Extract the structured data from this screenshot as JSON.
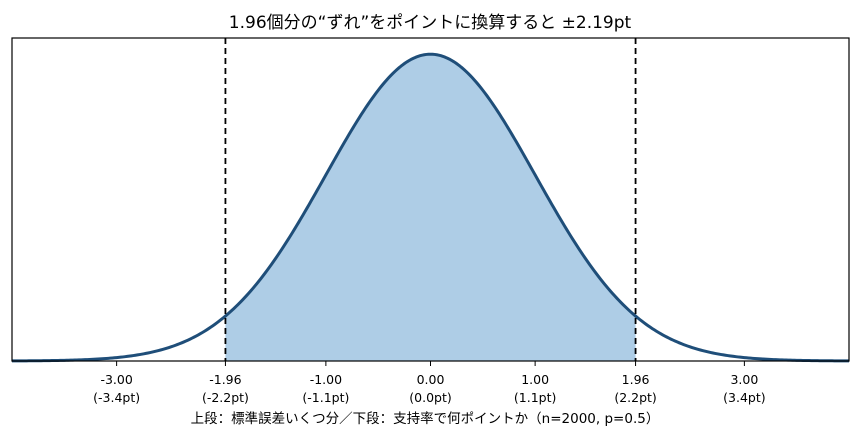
{
  "chart_data": {
    "type": "area",
    "title": "1.96個分の“ずれ”をポイントに換算すると ±2.19pt",
    "xlabel": "上段：標準誤差いくつ分／下段：支持率で何ポイントか（n=2000, p=0.5）",
    "ylabel": "",
    "xlim": [
      -4,
      4
    ],
    "ylim": [
      0,
      0.42
    ],
    "grid": false,
    "legend": "none",
    "curve": {
      "distribution": "standard-normal",
      "mean": 0,
      "sd": 1,
      "line_color": "#1f4e79",
      "fill_color": "#aecde6"
    },
    "shaded_interval": [
      -1.96,
      1.96
    ],
    "reference_lines": [
      {
        "x": -1.96,
        "style": "dashed",
        "color": "#000000"
      },
      {
        "x": 1.96,
        "style": "dashed",
        "color": "#000000"
      }
    ],
    "ticks": [
      {
        "x": -3.0,
        "label": "-3.00",
        "sublabel": "(-3.4pt)"
      },
      {
        "x": -1.96,
        "label": "-1.96",
        "sublabel": "(-2.2pt)"
      },
      {
        "x": -1.0,
        "label": "-1.00",
        "sublabel": "(-1.1pt)"
      },
      {
        "x": 0.0,
        "label": "0.00",
        "sublabel": "(0.0pt)"
      },
      {
        "x": 1.0,
        "label": "1.00",
        "sublabel": "(1.1pt)"
      },
      {
        "x": 1.96,
        "label": "1.96",
        "sublabel": "(2.2pt)"
      },
      {
        "x": 3.0,
        "label": "3.00",
        "sublabel": "(3.4pt)"
      }
    ]
  }
}
